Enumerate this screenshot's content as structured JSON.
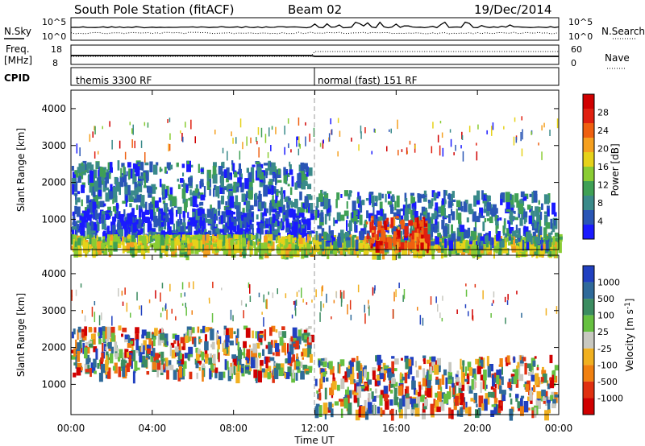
{
  "header": {
    "station": "South Pole Station (fitACF)",
    "beam": "Beam 02",
    "date": "19/Dec/2014"
  },
  "noise_panel": {
    "left_label": "N.Sky",
    "right_label": "N.Search",
    "left_ticks": [
      "10^5",
      "10^0"
    ],
    "right_ticks": [
      "10^5",
      "10^0"
    ]
  },
  "freq_panel": {
    "left_label_top": "Freq.",
    "left_label_unit": "[MHz]",
    "left_ticks": [
      "18",
      "8"
    ],
    "right_label": "Nave",
    "right_ticks": [
      "60",
      "0"
    ]
  },
  "cpid": {
    "label": "CPID",
    "modes": [
      {
        "name": "themis 3300 RF",
        "start": "00:00"
      },
      {
        "name": "normal (fast) 151 RF",
        "start": "12:00"
      }
    ]
  },
  "chart_data": [
    {
      "type": "heatmap",
      "panel": "power",
      "ylabel": "Slant Range [km]",
      "xlabel": "",
      "x_ticks": [
        "00:00",
        "04:00",
        "08:00",
        "12:00",
        "16:00",
        "20:00",
        "00:00"
      ],
      "y_ticks": [
        1000,
        2000,
        3000,
        4000
      ],
      "ylim": [
        180,
        4500
      ],
      "colorbar": {
        "label": "Power [dB]",
        "ticks": [
          4,
          8,
          12,
          16,
          20,
          24,
          28
        ],
        "colors": [
          "#1a1aff",
          "#2a56b5",
          "#3a8a8a",
          "#3fa055",
          "#8acc33",
          "#e6d21a",
          "#f5a020",
          "#ef6010",
          "#e02010",
          "#d00000"
        ]
      },
      "regions": [
        {
          "t0": 0.0,
          "t1": 11.8,
          "r0": 1300,
          "r1": 2600,
          "level": 2
        },
        {
          "t0": 0.0,
          "t1": 11.8,
          "r0": 600,
          "r1": 1300,
          "level": 1
        },
        {
          "t0": 0.0,
          "t1": 24.0,
          "r0": 200,
          "r1": 600,
          "level": 5
        },
        {
          "t0": 12.0,
          "t1": 23.8,
          "r0": 400,
          "r1": 1800,
          "level": 2
        },
        {
          "t0": 14.5,
          "t1": 17.5,
          "r0": 350,
          "r1": 1100,
          "level": 8
        }
      ]
    },
    {
      "type": "heatmap",
      "panel": "velocity",
      "ylabel": "Slant Range [km]",
      "xlabel": "Time UT",
      "x_ticks": [
        "00:00",
        "04:00",
        "08:00",
        "12:00",
        "16:00",
        "20:00",
        "00:00"
      ],
      "y_ticks": [
        1000,
        2000,
        3000,
        4000
      ],
      "ylim": [
        180,
        4500
      ],
      "colorbar": {
        "label": "Velocity [m s^-1]",
        "ticks": [
          1000,
          500,
          100,
          25,
          -25,
          -100,
          -500,
          -1000
        ],
        "colors": [
          "#2040c0",
          "#2f6a9a",
          "#3b8c60",
          "#66c040",
          "#c8c8c0",
          "#f0b020",
          "#f08010",
          "#e03010",
          "#d00000"
        ]
      },
      "regions": [
        {
          "t0": 0.0,
          "t1": 11.8,
          "r0": 1300,
          "r1": 2600,
          "level": "mixed"
        },
        {
          "t0": 12.0,
          "t1": 23.8,
          "r0": 300,
          "r1": 1800,
          "level": "mixed"
        }
      ]
    }
  ]
}
